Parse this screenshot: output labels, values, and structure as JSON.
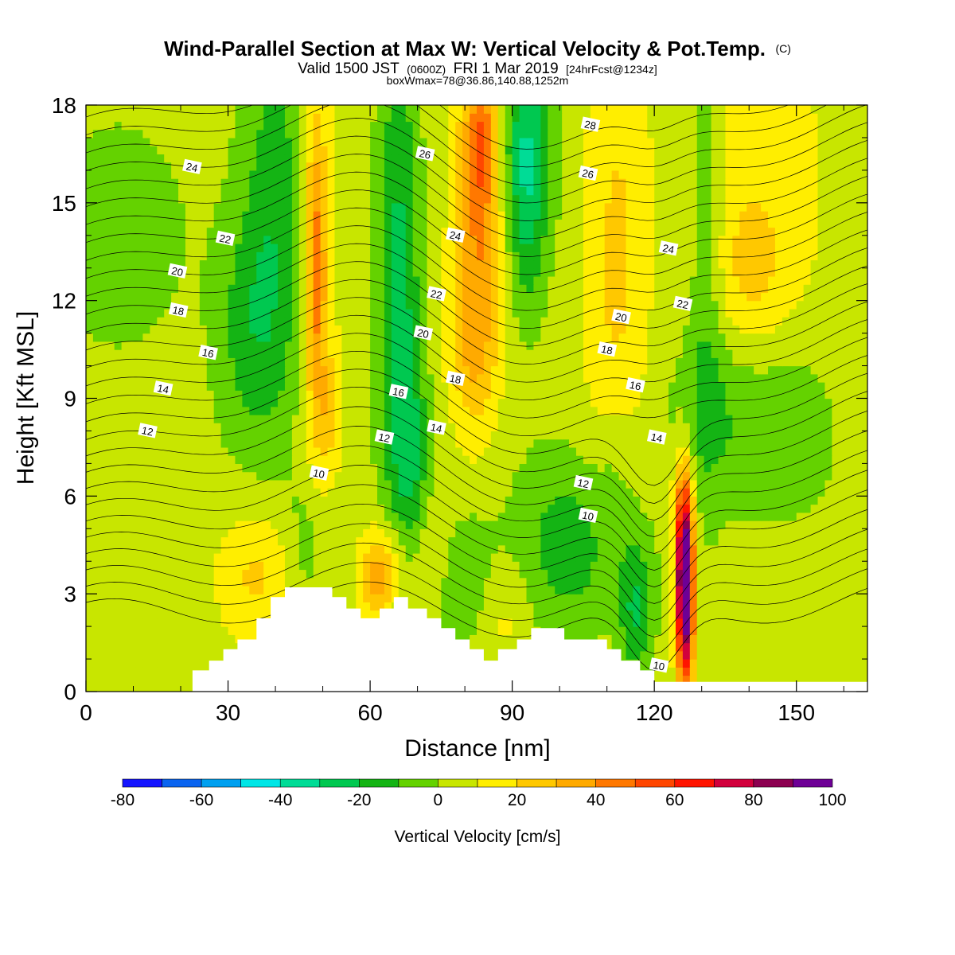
{
  "chart_data": {
    "type": "heatmap",
    "title": "Wind-Parallel Section at Max W: Vertical Velocity & Pot.Temp.",
    "copyright": "(C)",
    "subtitle_main": "Valid 1500 JST",
    "subtitle_utc": "(0600Z)",
    "subtitle_date": "FRI 1 Mar 2019",
    "subtitle_forecast": "[24hrFcst@1234z]",
    "subtitle_box": "boxWmax=78@36.86,140.88,1252m",
    "xlabel": "Distance [nm]",
    "ylabel": "Height [Kft MSL]",
    "xlim": [
      0,
      165
    ],
    "ylim": [
      0,
      18
    ],
    "xticks": [
      0,
      30,
      60,
      90,
      120,
      150
    ],
    "yticks": [
      0,
      3,
      6,
      9,
      12,
      15,
      18
    ],
    "colorbar": {
      "label": "Vertical Velocity [cm/s]",
      "ticks": [
        -80,
        -60,
        -40,
        -20,
        0,
        20,
        40,
        60,
        80,
        100
      ],
      "levels": [
        -80,
        -70,
        -60,
        -50,
        -40,
        -30,
        -20,
        -10,
        0,
        10,
        20,
        30,
        40,
        50,
        60,
        70,
        80,
        90,
        100
      ],
      "colors": [
        "#1414ff",
        "#0a64f0",
        "#00a0f0",
        "#00e6e6",
        "#00dc96",
        "#00c850",
        "#14b414",
        "#64d200",
        "#c8e600",
        "#ffee00",
        "#ffc800",
        "#ffaa00",
        "#ff7800",
        "#ff4600",
        "#ff1400",
        "#d2003c",
        "#8c0050",
        "#6e0096"
      ]
    },
    "terrain_profile": {
      "x": [
        0,
        22.5,
        22.5,
        26,
        26,
        29,
        29,
        32,
        32,
        36,
        36,
        39,
        39,
        42,
        42,
        45,
        45,
        52,
        52,
        55,
        55,
        58,
        58,
        62,
        62,
        65,
        65,
        68,
        68,
        72,
        72,
        75,
        75,
        78,
        78,
        81,
        81,
        84,
        84,
        87,
        87,
        91,
        91,
        94,
        94,
        101,
        101,
        110,
        110,
        113,
        113,
        117,
        117,
        120,
        120,
        165
      ],
      "y": [
        0,
        0,
        0.65,
        0.65,
        0.95,
        0.95,
        1.3,
        1.3,
        1.6,
        1.6,
        2.25,
        2.25,
        2.9,
        2.9,
        3.2,
        3.2,
        3.2,
        3.2,
        2.9,
        2.9,
        2.55,
        2.55,
        2.25,
        2.25,
        2.55,
        2.55,
        2.9,
        2.9,
        2.55,
        2.55,
        2.25,
        2.25,
        1.95,
        1.95,
        1.6,
        1.6,
        1.3,
        1.3,
        0.95,
        0.95,
        1.3,
        1.3,
        1.6,
        1.6,
        1.95,
        1.95,
        1.6,
        1.6,
        1.3,
        1.3,
        0.95,
        0.95,
        0.65,
        0.65,
        0.3,
        0.3
      ]
    },
    "theta_contour_labels": [
      {
        "label": "24",
        "x": 22.4,
        "y": 16.1
      },
      {
        "label": "22",
        "x": 29.4,
        "y": 13.9
      },
      {
        "label": "20",
        "x": 19.3,
        "y": 12.9
      },
      {
        "label": "18",
        "x": 19.5,
        "y": 11.7
      },
      {
        "label": "16",
        "x": 25.8,
        "y": 10.4
      },
      {
        "label": "14",
        "x": 16.3,
        "y": 9.3
      },
      {
        "label": "12",
        "x": 13.0,
        "y": 8.0
      },
      {
        "label": "10",
        "x": 49.2,
        "y": 6.7
      },
      {
        "label": "26",
        "x": 71.6,
        "y": 16.5
      },
      {
        "label": "24",
        "x": 78.0,
        "y": 14.0
      },
      {
        "label": "22",
        "x": 74.0,
        "y": 12.2
      },
      {
        "label": "20",
        "x": 71.2,
        "y": 11.0
      },
      {
        "label": "18",
        "x": 78.0,
        "y": 9.6
      },
      {
        "label": "16",
        "x": 66.0,
        "y": 9.2
      },
      {
        "label": "14",
        "x": 74.0,
        "y": 8.1
      },
      {
        "label": "12",
        "x": 63.0,
        "y": 7.8
      },
      {
        "label": "28",
        "x": 106.5,
        "y": 17.4
      },
      {
        "label": "26",
        "x": 106.0,
        "y": 15.9
      },
      {
        "label": "24",
        "x": 123.0,
        "y": 13.6
      },
      {
        "label": "22",
        "x": 126.0,
        "y": 11.9
      },
      {
        "label": "20",
        "x": 113.0,
        "y": 11.5
      },
      {
        "label": "18",
        "x": 110.0,
        "y": 10.5
      },
      {
        "label": "16",
        "x": 116.0,
        "y": 9.4
      },
      {
        "label": "14",
        "x": 120.5,
        "y": 7.8
      },
      {
        "label": "12",
        "x": 105.0,
        "y": 6.4
      },
      {
        "label": "10",
        "x": 106.0,
        "y": 5.4
      },
      {
        "label": "10",
        "x": 121.0,
        "y": 0.8
      }
    ],
    "w_features": [
      {
        "x": 49,
        "y": 12.5,
        "sx": 2.6,
        "sy": 4.8,
        "v": 22
      },
      {
        "x": 48.5,
        "y": 14.5,
        "sx": 1.3,
        "sy": 2.5,
        "v": 18
      },
      {
        "x": 48.5,
        "y": 11.5,
        "sx": 1.2,
        "sy": 2.0,
        "v": 12
      },
      {
        "x": 51.5,
        "y": 8.5,
        "sx": 2.0,
        "sy": 1.3,
        "v": 14
      },
      {
        "x": 83,
        "y": 15,
        "sx": 3.8,
        "sy": 4.0,
        "v": 35
      },
      {
        "x": 83.5,
        "y": 17,
        "sx": 1.8,
        "sy": 1.5,
        "v": 20
      },
      {
        "x": 81,
        "y": 10.5,
        "sx": 3.5,
        "sy": 1.8,
        "v": 15
      },
      {
        "x": 112,
        "y": 13,
        "sx": 5,
        "sy": 6,
        "v": 18
      },
      {
        "x": 142,
        "y": 15.5,
        "sx": 10,
        "sy": 4,
        "v": 14
      },
      {
        "x": 140,
        "y": 12.5,
        "sx": 5,
        "sy": 1.5,
        "v": 10
      },
      {
        "x": 126.5,
        "y": 3,
        "sx": 1.3,
        "sy": 1.9,
        "v": 110
      },
      {
        "x": 126,
        "y": 5.5,
        "sx": 1.5,
        "sy": 1.5,
        "v": 30
      },
      {
        "x": 36,
        "y": 3.5,
        "sx": 6,
        "sy": 1.5,
        "v": 18
      },
      {
        "x": 62,
        "y": 3.5,
        "sx": 3,
        "sy": 1.0,
        "v": 30
      },
      {
        "x": 70,
        "y": 4.2,
        "sx": 6,
        "sy": 1.2,
        "v": 12
      },
      {
        "x": 88,
        "y": 2.5,
        "sx": 4,
        "sy": 1.3,
        "v": 12
      },
      {
        "x": 40,
        "y": 14.5,
        "sx": 5,
        "sy": 4.5,
        "v": -20
      },
      {
        "x": 34,
        "y": 11,
        "sx": 5,
        "sy": 2.5,
        "v": -15
      },
      {
        "x": 66,
        "y": 12,
        "sx": 3,
        "sy": 6,
        "v": -28
      },
      {
        "x": 69,
        "y": 7,
        "sx": 2.5,
        "sy": 2.5,
        "v": -18
      },
      {
        "x": 93,
        "y": 17,
        "sx": 4,
        "sy": 2,
        "v": -30
      },
      {
        "x": 93,
        "y": 14,
        "sx": 3,
        "sy": 2.0,
        "v": -18
      },
      {
        "x": 131,
        "y": 14,
        "sx": 2.5,
        "sy": 5,
        "v": -15
      },
      {
        "x": 135,
        "y": 8.5,
        "sx": 9,
        "sy": 2.0,
        "v": -15
      },
      {
        "x": 150,
        "y": 8,
        "sx": 6,
        "sy": 1.8,
        "v": -10
      },
      {
        "x": 7,
        "y": 14,
        "sx": 10,
        "sy": 2.5,
        "v": -10
      },
      {
        "x": 103,
        "y": 4.5,
        "sx": 9,
        "sy": 2.0,
        "v": -20
      },
      {
        "x": 116,
        "y": 2.5,
        "sx": 2.5,
        "sy": 1.5,
        "v": -25
      },
      {
        "x": 80,
        "y": 3.5,
        "sx": 5,
        "sy": 1.5,
        "v": -15
      },
      {
        "x": 47,
        "y": 4.5,
        "sx": 3,
        "sy": 1.5,
        "v": -12
      },
      {
        "x": 112,
        "y": 7,
        "sx": 3,
        "sy": 1.5,
        "v": -8
      }
    ]
  }
}
